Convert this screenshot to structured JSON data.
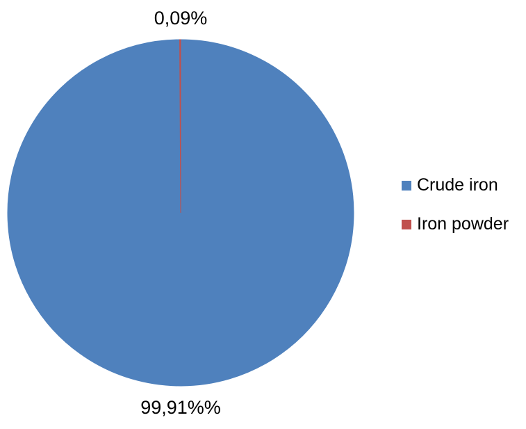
{
  "chart_data": {
    "type": "pie",
    "title": "",
    "slices": [
      {
        "label": "Crude iron",
        "value": 99.91,
        "data_label": "99,91%%",
        "color": "#4F81BD"
      },
      {
        "label": "Iron powder",
        "value": 0.09,
        "data_label": "0,09%",
        "color": "#C0504D"
      }
    ],
    "legend_position": "right",
    "start_angle_deg": 0,
    "direction": "clockwise"
  }
}
